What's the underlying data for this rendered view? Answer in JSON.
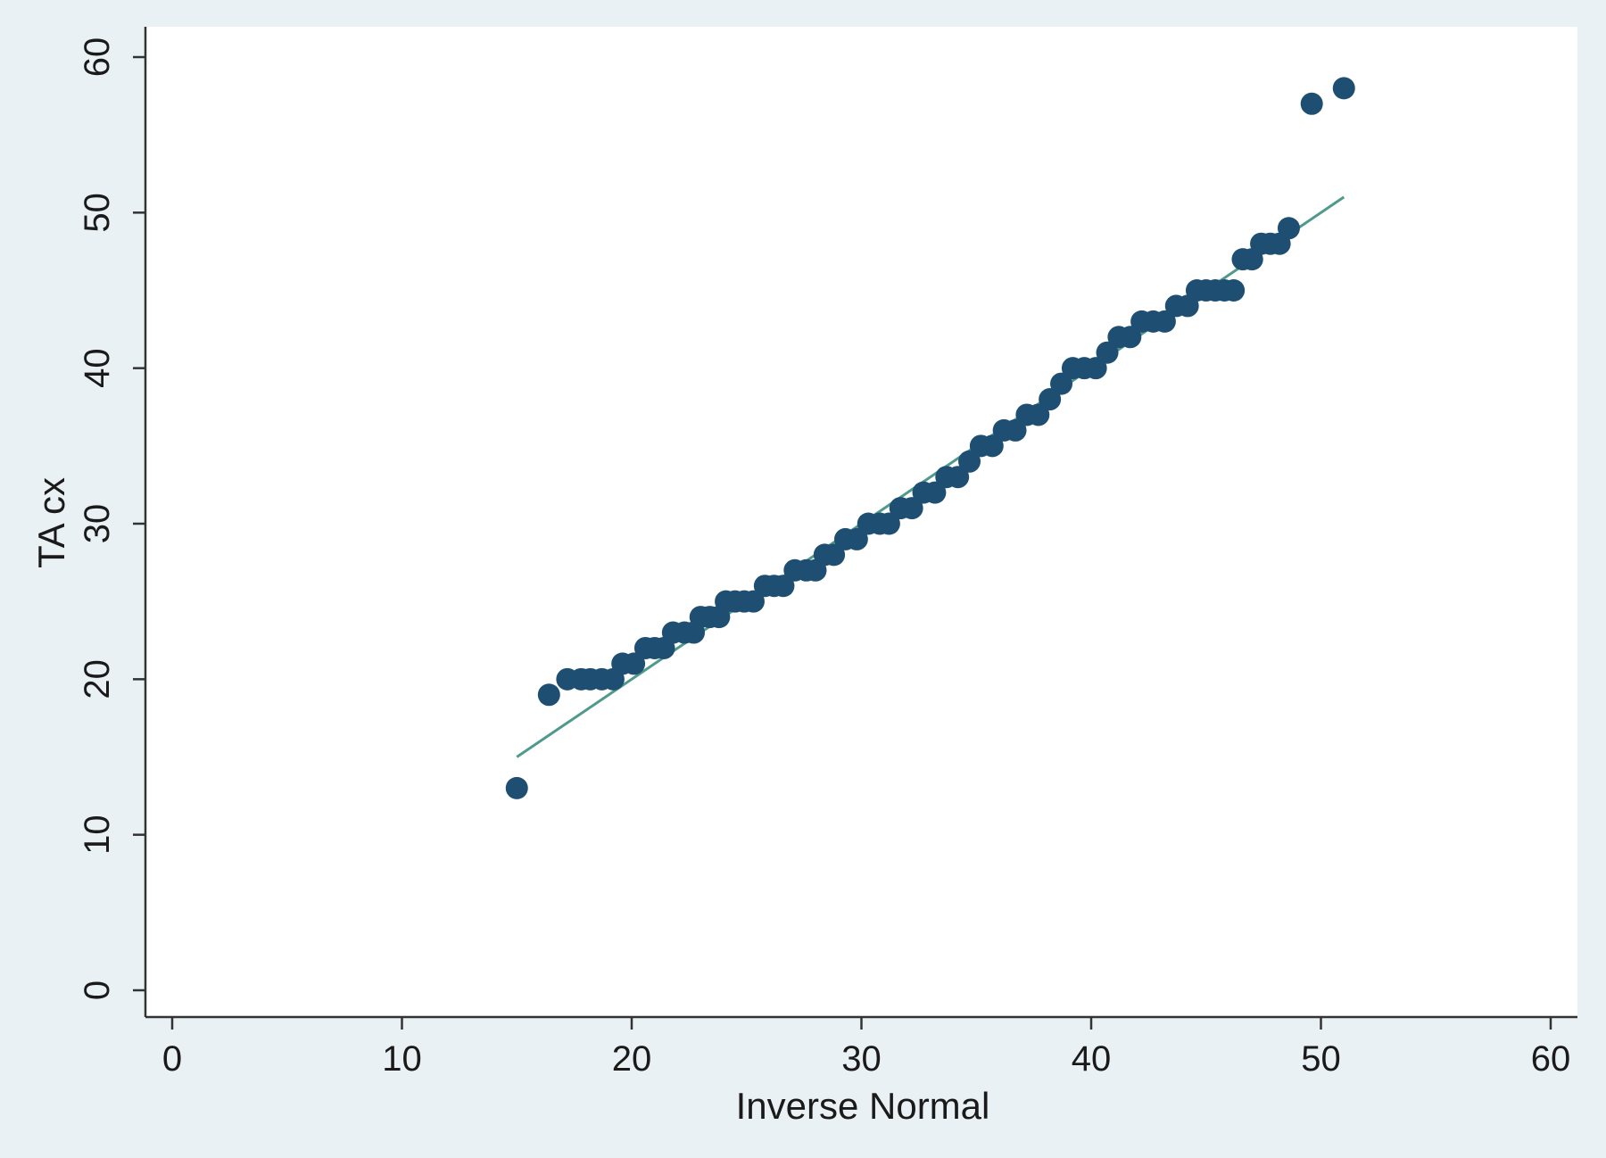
{
  "chart_data": {
    "type": "scatter",
    "title": "",
    "xlabel": "Inverse Normal",
    "ylabel": "TA cx",
    "xlim": [
      0,
      60
    ],
    "ylim": [
      0,
      60
    ],
    "xticks": [
      "0",
      "10",
      "20",
      "30",
      "40",
      "50",
      "60"
    ],
    "yticks": [
      "0",
      "10",
      "20",
      "30",
      "40",
      "50",
      "60"
    ],
    "grid": false,
    "legend": "none",
    "colors": {
      "points": "#1f4e73",
      "fit_line": "#4f9a8c",
      "plot_bg": "#ffffff",
      "outer_bg": "#eaf1f5"
    },
    "series": [
      {
        "kind": "points",
        "x": [
          15,
          16.4,
          17.2,
          17.8,
          18.2,
          18.7,
          19.2,
          19.6,
          20.1,
          20.6,
          21.0,
          21.4,
          21.8,
          22.3,
          22.7,
          23.0,
          23.4,
          23.8,
          24.1,
          24.5,
          24.9,
          25.3,
          25.8,
          26.2,
          26.6,
          27.1,
          27.6,
          28.0,
          28.4,
          28.8,
          29.3,
          29.8,
          30.3,
          30.8,
          31.2,
          31.7,
          32.2,
          32.7,
          33.2,
          33.7,
          34.2,
          34.7,
          35.2,
          35.7,
          36.2,
          36.7,
          37.2,
          37.7,
          38.2,
          38.7,
          39.2,
          39.7,
          40.2,
          40.7,
          41.2,
          41.7,
          42.2,
          42.7,
          43.2,
          43.7,
          44.2,
          44.6,
          45.0,
          45.4,
          45.8,
          46.2,
          46.6,
          47.0,
          47.4,
          47.8,
          48.2,
          48.6,
          49.6,
          51.0
        ],
        "y": [
          13,
          19,
          20,
          20,
          20,
          20,
          20,
          21,
          21,
          22,
          22,
          22,
          23,
          23,
          23,
          24,
          24,
          24,
          25,
          25,
          25,
          25,
          26,
          26,
          26,
          27,
          27,
          27,
          28,
          28,
          29,
          29,
          30,
          30,
          30,
          31,
          31,
          32,
          32,
          33,
          33,
          34,
          35,
          35,
          36,
          36,
          37,
          37,
          38,
          39,
          40,
          40,
          40,
          41,
          42,
          42,
          43,
          43,
          43,
          44,
          44,
          45,
          45,
          45,
          45,
          45,
          47,
          47,
          48,
          48,
          48,
          49,
          57,
          58
        ]
      },
      {
        "kind": "fit_line",
        "x": [
          15,
          51
        ],
        "y": [
          15,
          51
        ]
      }
    ]
  }
}
